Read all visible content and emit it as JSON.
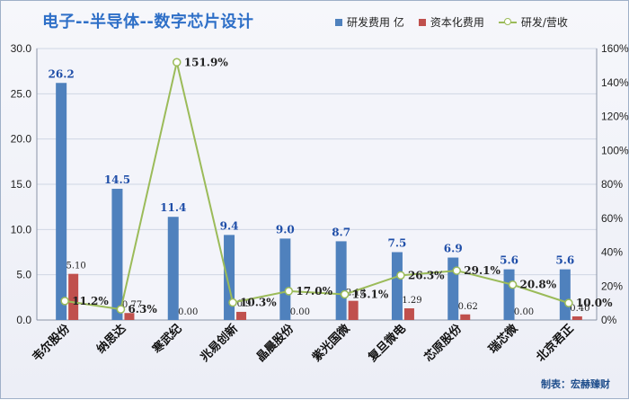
{
  "chart_data": {
    "type": "bar",
    "title": "电子--半导体--数字芯片设计",
    "categories": [
      "韦尔股份",
      "纳思达",
      "寒武纪",
      "兆易创新",
      "晶晨股份",
      "紫光国微",
      "复旦微电",
      "芯原股份",
      "瑞芯微",
      "北京君正"
    ],
    "series": [
      {
        "name": "研发费用 亿",
        "axis": "left",
        "values": [
          26.2,
          14.5,
          11.4,
          9.4,
          9.0,
          8.7,
          7.5,
          6.9,
          5.6,
          5.6
        ],
        "labels": [
          "26.2",
          "14.5",
          "11.4",
          "9.4",
          "9.0",
          "8.7",
          "7.5",
          "6.9",
          "5.6",
          "5.6"
        ],
        "color": "#4f81bd"
      },
      {
        "name": "资本化费用",
        "axis": "left",
        "values": [
          5.1,
          0.77,
          0.0,
          0.9,
          0.0,
          2.12,
          1.29,
          0.62,
          0.0,
          0.4
        ],
        "labels": [
          "5.10",
          "0.77",
          "0.00",
          "0.9",
          "0.00",
          "2.12",
          "1.29",
          "0.62",
          "0.00",
          "0.40"
        ],
        "color": "#c0504d"
      },
      {
        "name": "研发/营收",
        "axis": "right",
        "type": "line",
        "values": [
          11.2,
          6.3,
          151.9,
          10.3,
          17.0,
          15.1,
          26.3,
          29.1,
          20.8,
          10.0
        ],
        "labels": [
          "11.2%",
          "6.3%",
          "151.9%",
          "10.3%",
          "17.0%",
          "15.1%",
          "26.3%",
          "29.1%",
          "20.8%",
          "10.0%"
        ],
        "color": "#9bbb59"
      }
    ],
    "ylim": [
      0,
      30
    ],
    "yticks": [
      "0.0",
      "5.0",
      "10.0",
      "15.0",
      "20.0",
      "25.0",
      "30.0"
    ],
    "y2lim": [
      0,
      160
    ],
    "y2ticks": [
      "0%",
      "20%",
      "40%",
      "60%",
      "80%",
      "100%",
      "120%",
      "140%",
      "160%"
    ],
    "grid": true,
    "legend_position": "top-right"
  },
  "footer": "制表：宏赫臻财",
  "colors": {
    "title": "#2e6fc7",
    "bar_label": "#1f4ea8",
    "grid": "#cfd6e4"
  }
}
